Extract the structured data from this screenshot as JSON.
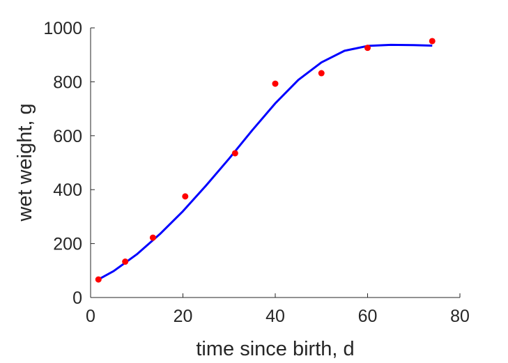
{
  "chart_data": {
    "type": "scatter",
    "title": "",
    "xlabel": "time since birth, d",
    "ylabel": "wet weight, g",
    "xlim": [
      0,
      80
    ],
    "ylim": [
      0,
      1000
    ],
    "xticks": [
      0,
      20,
      40,
      60,
      80
    ],
    "yticks": [
      0,
      200,
      400,
      600,
      800,
      1000
    ],
    "xtick_labels": [
      "0",
      "20",
      "40",
      "60",
      "80"
    ],
    "ytick_labels": [
      "0",
      "200",
      "400",
      "600",
      "800",
      "1000"
    ],
    "grid": false,
    "series": [
      {
        "type": "scatter",
        "color": "#ff0000",
        "x": [
          1.7,
          7.5,
          13.5,
          20.5,
          31.3,
          40,
          50,
          60,
          74
        ],
        "y": [
          67,
          133,
          222,
          375,
          535,
          793,
          832,
          926,
          951
        ]
      },
      {
        "type": "line",
        "color": "#0000ff",
        "x": [
          1.7,
          5,
          10,
          15,
          20,
          25,
          30,
          35,
          40,
          45,
          50,
          55,
          60,
          65,
          70,
          74
        ],
        "y": [
          67,
          98,
          160,
          235,
          320,
          415,
          515,
          620,
          720,
          807,
          872,
          915,
          933,
          937,
          936,
          934
        ]
      }
    ]
  }
}
